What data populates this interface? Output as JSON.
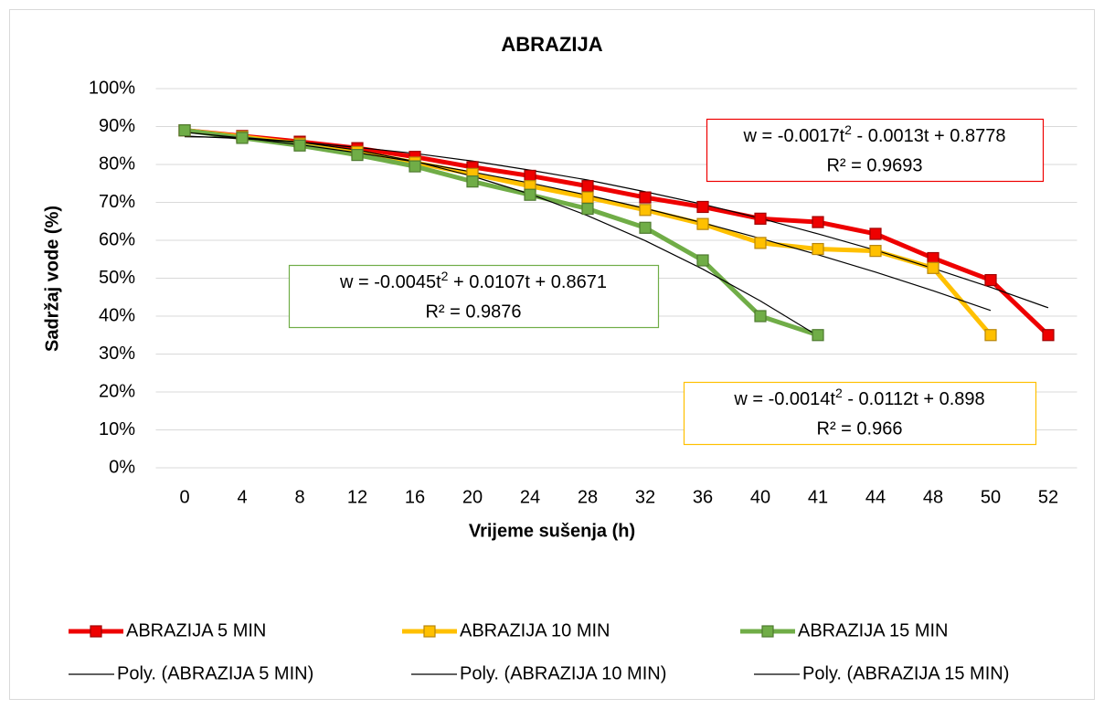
{
  "chart_data": {
    "type": "line",
    "title": "ABRAZIJA",
    "x_label": "Vrijeme sušenja (h)",
    "y_label": "Sadržaj vode (%)",
    "categories": [
      "0",
      "4",
      "8",
      "12",
      "16",
      "20",
      "24",
      "28",
      "32",
      "36",
      "40",
      "41",
      "44",
      "48",
      "50",
      "52"
    ],
    "ylim": [
      0,
      100
    ],
    "yticks": [
      {
        "value": 0,
        "label": "0%"
      },
      {
        "value": 10,
        "label": "10%"
      },
      {
        "value": 20,
        "label": "20%"
      },
      {
        "value": 30,
        "label": "30%"
      },
      {
        "value": 40,
        "label": "40%"
      },
      {
        "value": 50,
        "label": "50%"
      },
      {
        "value": 60,
        "label": "60%"
      },
      {
        "value": 70,
        "label": "70%"
      },
      {
        "value": 80,
        "label": "80%"
      },
      {
        "value": 90,
        "label": "90%"
      },
      {
        "value": 100,
        "label": "100%"
      }
    ],
    "grid": true,
    "legend": "bottom",
    "series": [
      {
        "name": "ABRAZIJA 5 MIN",
        "color": "#ee0000",
        "marker": "square",
        "values": [
          89,
          87.5,
          86,
          84.3,
          82,
          79.3,
          77,
          74.3,
          71.3,
          68.8,
          65.7,
          64.8,
          61.7,
          55.3,
          49.5,
          35
        ]
      },
      {
        "name": "ABRAZIJA 10 MIN",
        "color": "#ffc000",
        "marker": "square",
        "values": [
          89,
          87.3,
          85.5,
          83.3,
          80.5,
          77.5,
          74.3,
          71.3,
          68,
          64.3,
          59.3,
          57.7,
          57.2,
          52.7,
          35,
          null
        ]
      },
      {
        "name": "ABRAZIJA 15 MIN",
        "color": "#70ad47",
        "marker": "square",
        "values": [
          89,
          87,
          85,
          82.5,
          79.5,
          75.5,
          72,
          68.3,
          63.3,
          54.7,
          40,
          35,
          null,
          null,
          null,
          null
        ]
      },
      {
        "name": "Poly. (ABRAZIJA 5 MIN)",
        "color": "#000000",
        "marker": "none",
        "values": [
          87.5,
          86.8,
          85.9,
          84.5,
          82.9,
          80.9,
          78.5,
          75.9,
          72.8,
          69.5,
          65.8,
          61.7,
          57.4,
          52.6,
          47.6,
          42.2
        ]
      },
      {
        "name": "Poly. (ABRAZIJA 10 MIN)",
        "color": "#000000",
        "marker": "none",
        "values": [
          88.5,
          87.0,
          85.2,
          83.1,
          80.7,
          78.0,
          75.1,
          71.9,
          68.4,
          64.6,
          60.5,
          56.2,
          51.6,
          46.7,
          41.5,
          null
        ]
      },
      {
        "name": "Poly. (ABRAZIJA 15 MIN)",
        "color": "#000000",
        "marker": "none",
        "values": [
          87.3,
          87.1,
          85.9,
          83.8,
          80.8,
          76.9,
          72.2,
          66.5,
          59.9,
          52.4,
          44.0,
          34.8,
          null,
          null,
          null,
          null
        ]
      }
    ],
    "annotations": [
      {
        "equation": [
          "w = -0.0017t",
          "2",
          " - 0.0013t + 0.8778"
        ],
        "r2": "R² = 0.9693",
        "color": "#ee0000"
      },
      {
        "equation": [
          "w = -0.0045t",
          "2",
          " + 0.0107t + 0.8671"
        ],
        "r2": "R² = 0.9876",
        "color": "#70ad47"
      },
      {
        "equation": [
          "w = -0.0014t",
          "2",
          " - 0.0112t + 0.898"
        ],
        "r2": "R² = 0.966",
        "color": "#ffc000"
      }
    ]
  }
}
